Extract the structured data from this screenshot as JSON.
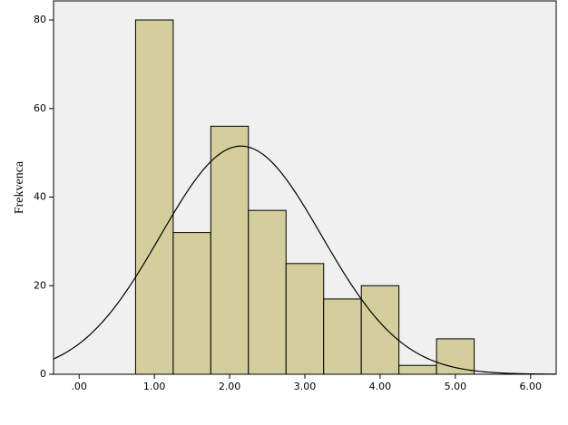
{
  "chart_data": {
    "type": "histogram",
    "y_label": "Frekvenca",
    "bins": [
      0.75,
      1.25,
      1.75,
      2.25,
      2.75,
      3.25,
      3.75,
      4.25,
      4.75,
      5.25
    ],
    "values": [
      80,
      32,
      56,
      37,
      25,
      17,
      20,
      2,
      8
    ],
    "color": "#d3ce9c",
    "normal_curve": true,
    "xlim": [
      -0.34,
      6.34
    ],
    "xticks": [
      {
        "value": 0,
        "label": ".00"
      },
      {
        "value": 1,
        "label": "1.00"
      },
      {
        "value": 2,
        "label": "2.00"
      },
      {
        "value": 3,
        "label": "3.00"
      },
      {
        "value": 4,
        "label": "4.00"
      },
      {
        "value": 5,
        "label": "5.00"
      },
      {
        "value": 6,
        "label": "6.00"
      }
    ],
    "ylim": [
      0,
      84.3
    ],
    "yticks": [
      0,
      20,
      40,
      60,
      80
    ]
  }
}
